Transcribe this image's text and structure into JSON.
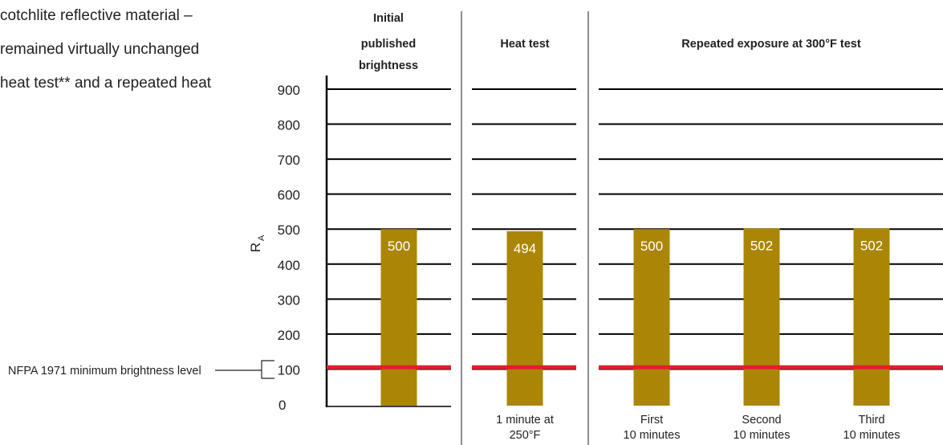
{
  "intro_text": [
    "cotchlite reflective material –",
    "remained virtually unchanged",
    "heat test** and a repeated heat"
  ],
  "colors": {
    "bar": "#ab8606",
    "bar_label": "#ffffff",
    "nfpa_line": "#e01f2f",
    "grid": "#000000",
    "axis": "#000000",
    "divider": "#444444",
    "text": "#222222"
  },
  "chart_data": {
    "type": "bar",
    "ylabel": "R",
    "ylabel_subscript": "A",
    "ylim": [
      0,
      900
    ],
    "yticks": [
      0,
      100,
      200,
      300,
      400,
      500,
      600,
      700,
      800,
      900
    ],
    "grid": true,
    "reference_line": {
      "value": 105,
      "label": "NFPA 1971 minimum brightness level"
    },
    "panels": [
      {
        "title": [
          "Initial",
          "published",
          "brightness"
        ],
        "bars": [
          {
            "category": [],
            "value": 500,
            "label": "500"
          }
        ]
      },
      {
        "title": [
          "Heat test"
        ],
        "bars": [
          {
            "category": [
              "1 minute at",
              "250°F"
            ],
            "value": 494,
            "label": "494"
          }
        ]
      },
      {
        "title": [
          "Repeated exposure at 300°F test"
        ],
        "bars": [
          {
            "category": [
              "First",
              "10 minutes"
            ],
            "value": 500,
            "label": "500"
          },
          {
            "category": [
              "Second",
              "10 minutes"
            ],
            "value": 502,
            "label": "502"
          },
          {
            "category": [
              "Third",
              "10 minutes"
            ],
            "value": 502,
            "label": "502"
          }
        ]
      }
    ]
  }
}
